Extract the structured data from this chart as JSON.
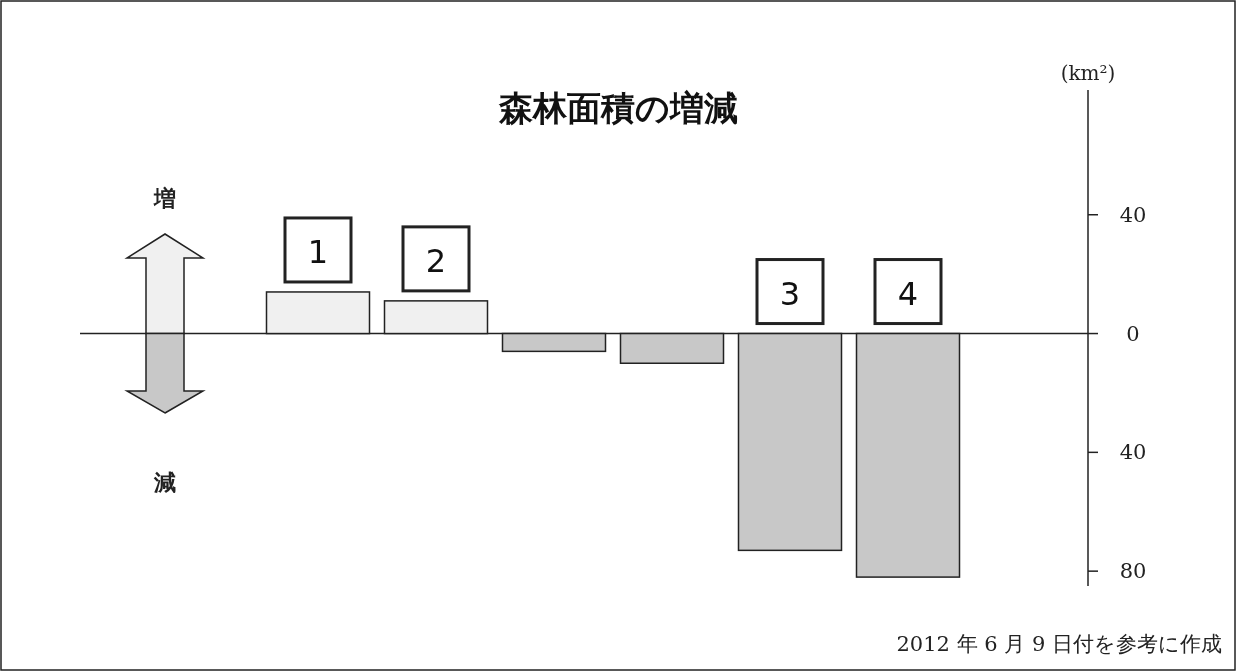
{
  "chart_data": {
    "type": "bar",
    "title": "森林面積の増減",
    "ylabel": "(km²)",
    "categories": [
      "1",
      "2",
      null,
      null,
      "3",
      "4"
    ],
    "values": [
      14,
      11,
      -6,
      -10,
      -73,
      -82
    ],
    "colors": [
      "#f0f0f0",
      "#f0f0f0",
      "#c8c8c8",
      "#c8c8c8",
      "#c8c8c8",
      "#c8c8c8"
    ],
    "ylim": [
      -85,
      82
    ],
    "yticks": [
      {
        "value": 40,
        "label": "40"
      },
      {
        "value": 0,
        "label": "0"
      },
      {
        "value": -40,
        "label": "40"
      },
      {
        "value": -80,
        "label": "80"
      }
    ],
    "annotations": [
      "増",
      "減",
      "2012 年 6 月 9 日付を参考に作成"
    ]
  }
}
